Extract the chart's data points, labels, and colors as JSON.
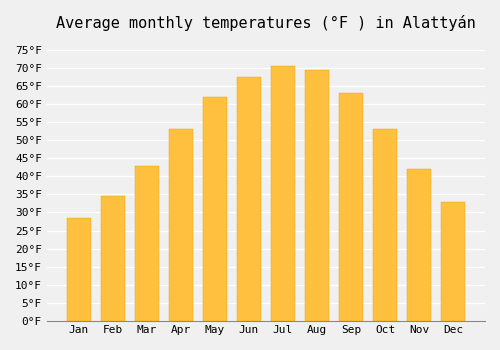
{
  "title": "Average monthly temperatures (°F ) in Alattyán",
  "months": [
    "Jan",
    "Feb",
    "Mar",
    "Apr",
    "May",
    "Jun",
    "Jul",
    "Aug",
    "Sep",
    "Oct",
    "Nov",
    "Dec"
  ],
  "values": [
    28.5,
    34.5,
    43.0,
    53.0,
    62.0,
    67.5,
    70.5,
    69.5,
    63.0,
    53.0,
    42.0,
    33.0
  ],
  "bar_color": "#FFA500",
  "bar_edge_color": "#FFA500",
  "ylim": [
    0,
    78
  ],
  "yticks": [
    0,
    5,
    10,
    15,
    20,
    25,
    30,
    35,
    40,
    45,
    50,
    55,
    60,
    65,
    70,
    75
  ],
  "ytick_labels": [
    "0°F",
    "5°F",
    "10°F",
    "15°F",
    "20°F",
    "25°F",
    "30°F",
    "35°F",
    "40°F",
    "45°F",
    "50°F",
    "55°F",
    "60°F",
    "65°F",
    "70°F",
    "75°F"
  ],
  "background_color": "#f0f0f0",
  "grid_color": "#ffffff",
  "title_fontsize": 11,
  "tick_fontsize": 8,
  "bar_width": 0.7
}
